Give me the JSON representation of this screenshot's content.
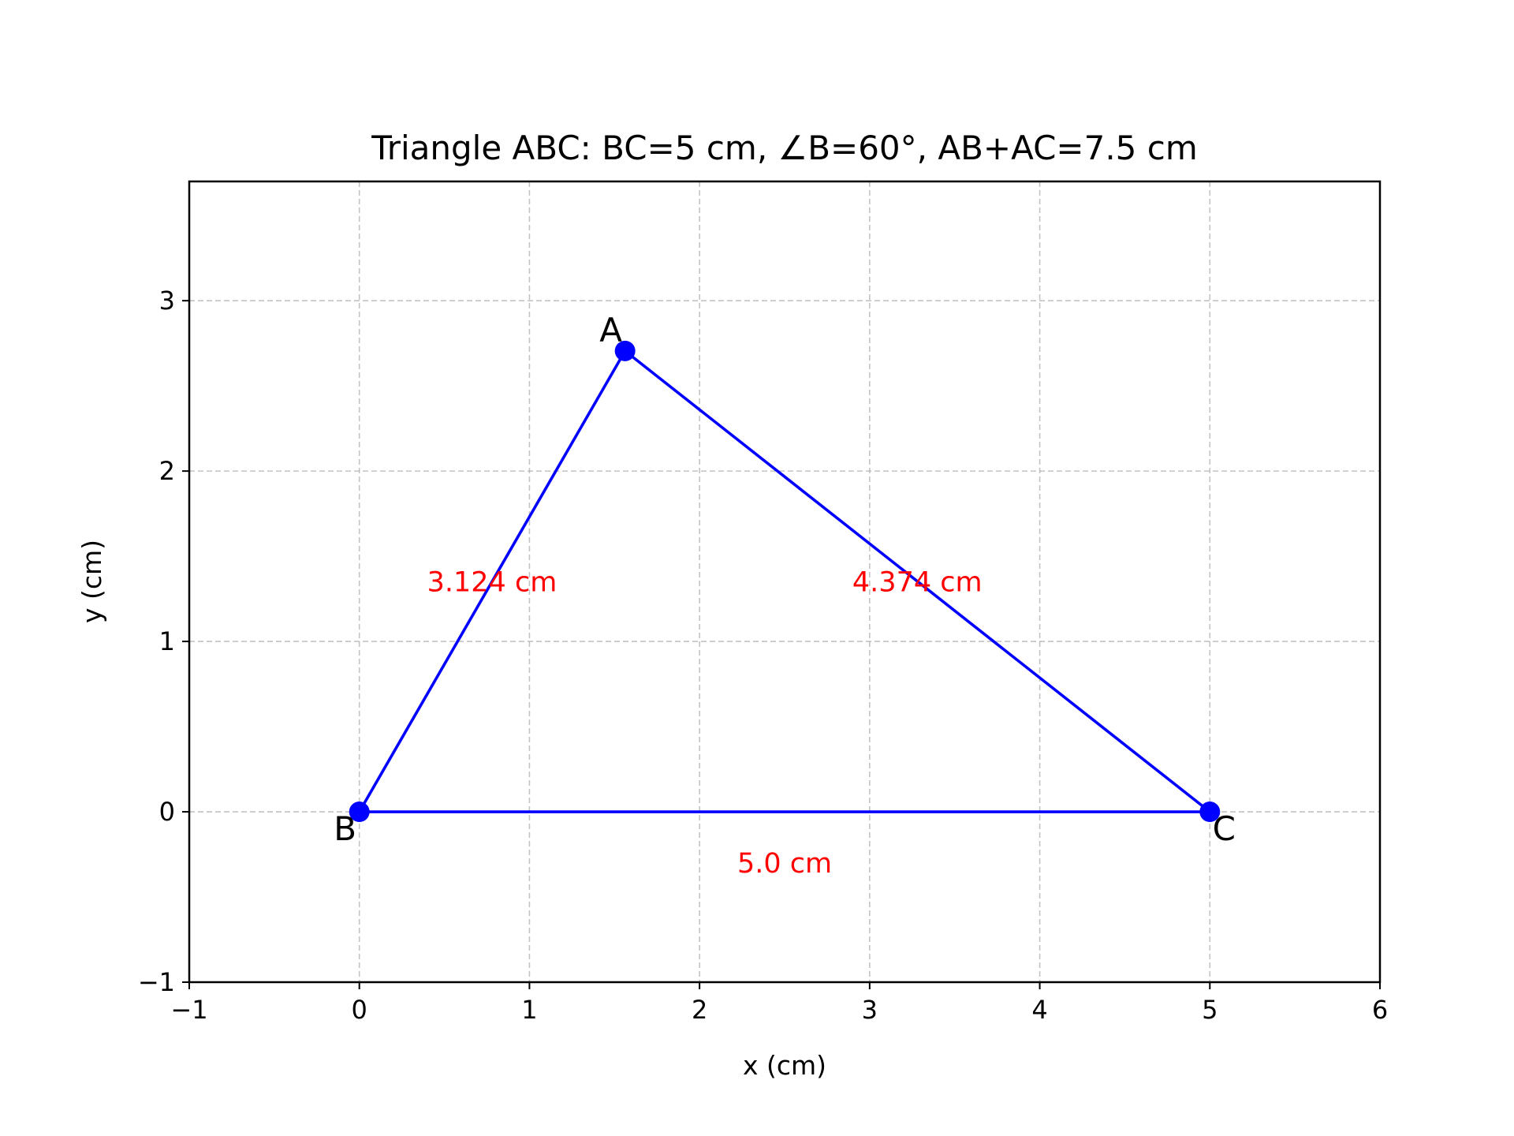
{
  "chart_data": {
    "type": "line",
    "title": "Triangle ABC: BC=5 cm, ∠B=60°, AB+AC=7.5 cm",
    "xlabel": "x (cm)",
    "ylabel": "y (cm)",
    "xlim": [
      -1,
      6
    ],
    "ylim": [
      -1,
      3.7
    ],
    "xticks": [
      -1,
      0,
      1,
      2,
      3,
      4,
      5,
      6
    ],
    "xtick_labels": [
      "−1",
      "0",
      "1",
      "2",
      "3",
      "4",
      "5",
      "6"
    ],
    "yticks": [
      -1,
      0,
      1,
      2,
      3
    ],
    "ytick_labels": [
      "−1",
      "0",
      "1",
      "2",
      "3"
    ],
    "grid": true,
    "line_color": "#0000ff",
    "annotation_color": "#ff0000",
    "vertices": [
      {
        "label": "A",
        "x": 1.562,
        "y": 2.705
      },
      {
        "label": "B",
        "x": 0,
        "y": 0
      },
      {
        "label": "C",
        "x": 5,
        "y": 0
      }
    ],
    "side_labels": [
      {
        "side": "AB",
        "text": "3.124 cm",
        "x": 0.78,
        "y": 1.35
      },
      {
        "side": "AC",
        "text": "4.374 cm",
        "x": 3.28,
        "y": 1.35
      },
      {
        "side": "BC",
        "text": "5.0 cm",
        "x": 2.5,
        "y": -0.3
      }
    ]
  }
}
